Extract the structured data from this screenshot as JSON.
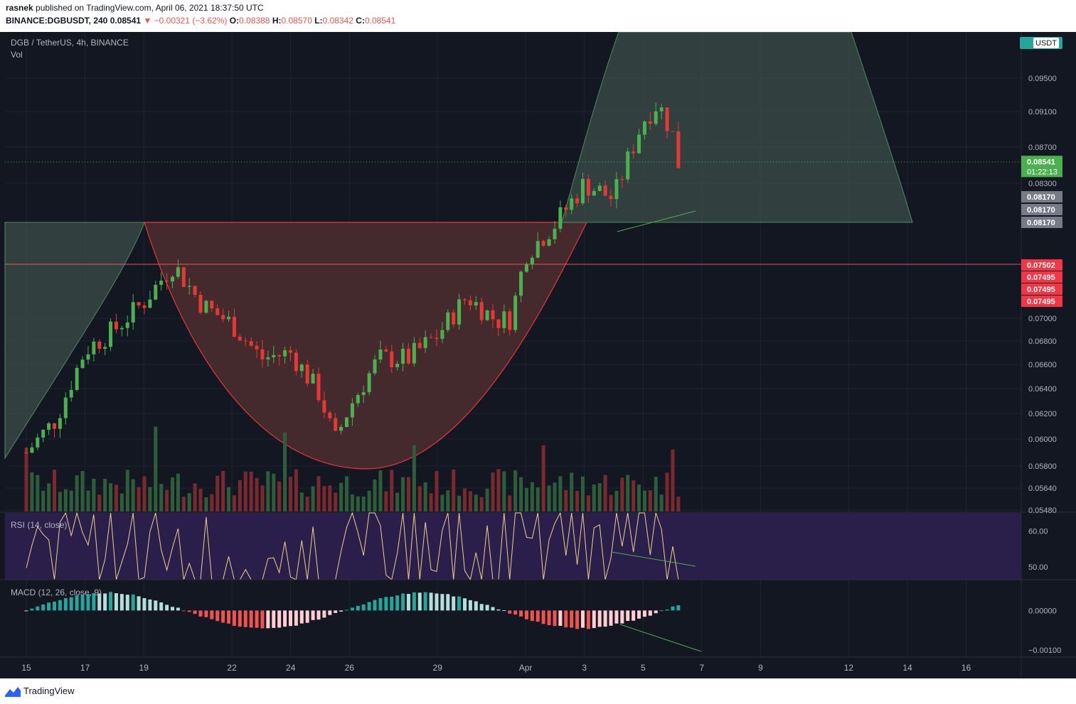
{
  "header": {
    "author": "rasnek",
    "published_text": "published on TradingView.com, April 06, 2021 18:37:50 UTC",
    "symbol": "BINANCE:DGBUSDT, 240",
    "last": "0.08541",
    "change": "▼ −0.00321 (−3.62%)",
    "o_label": "O:",
    "o_value": "0.08388",
    "h_label": "H:",
    "h_value": "0.08570",
    "l_label": "L:",
    "l_value": "0.08342",
    "c_label": "C:",
    "c_value": "0.08541"
  },
  "legend": {
    "pair": "DGB / TetherUS, 4h, BINANCE",
    "vol": "Vol",
    "rsi": "RSI (14, close)",
    "macd": "MACD (12, 26, close, 9)"
  },
  "footer": {
    "brand": "TradingView"
  },
  "colors": {
    "background": "#131722",
    "up": "#26a69a",
    "down": "#ef5350",
    "candle_up": "#4caf50",
    "candle_down": "#e53935",
    "rsi_band": "#2a1f4a",
    "accent": "#ef5350"
  },
  "chart_data": {
    "type": "candlestick",
    "currency_label": "USDT",
    "price_axis": {
      "range": [
        0.0548,
        0.099
      ],
      "ticks": [
        "0.09500",
        "0.09100",
        "0.08700",
        "0.08300",
        "0.07000",
        "0.06800",
        "0.06600",
        "0.06400",
        "0.06200",
        "0.06000",
        "0.05800",
        "0.05640",
        "0.05480"
      ]
    },
    "x_axis": {
      "ticks": [
        {
          "label": "15",
          "day": 15
        },
        {
          "label": "17",
          "day": 17
        },
        {
          "label": "19",
          "day": 19
        },
        {
          "label": "22",
          "day": 22
        },
        {
          "label": "24",
          "day": 24
        },
        {
          "label": "26",
          "day": 26
        },
        {
          "label": "29",
          "day": 29
        },
        {
          "label": "Apr",
          "day": 32
        },
        {
          "label": "3",
          "day": 34
        },
        {
          "label": "5",
          "day": 36
        },
        {
          "label": "7",
          "day": 38
        },
        {
          "label": "9",
          "day": 40
        },
        {
          "label": "12",
          "day": 43
        },
        {
          "label": "14",
          "day": 45
        },
        {
          "label": "16",
          "day": 47
        }
      ]
    },
    "price_labels": [
      {
        "text": "0.08541",
        "sub": "01:22:13",
        "value": 0.08541,
        "color": "#4caf50"
      },
      {
        "text": "0.08170",
        "value": 0.0817,
        "color": "#787b86"
      },
      {
        "text": "0.08170",
        "value": 0.0817,
        "color": "#787b86"
      },
      {
        "text": "0.08170",
        "value": 0.0817,
        "color": "#787b86"
      },
      {
        "text": "0.07502",
        "value": 0.07502,
        "color": "#f23645"
      },
      {
        "text": "0.07495",
        "value": 0.07495,
        "color": "#f23645"
      },
      {
        "text": "0.07495",
        "value": 0.07495,
        "color": "#f23645"
      },
      {
        "text": "0.07495",
        "value": 0.07495,
        "color": "#f23645"
      }
    ],
    "horizontal_line": 0.07502,
    "rsi": {
      "ticks": [
        "60.00",
        "50.00"
      ],
      "range": [
        46.5,
        65
      ]
    },
    "macd": {
      "ticks": [
        "0.00000",
        "−0.00100"
      ],
      "range": [
        -0.00118,
        0.00078
      ]
    }
  }
}
